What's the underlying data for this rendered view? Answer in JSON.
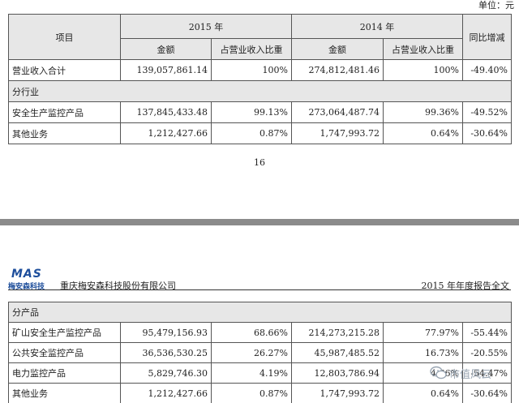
{
  "unit_label": "单位：元",
  "table1": {
    "col_item": "项目",
    "year_2015": "2015 年",
    "year_2014": "2014 年",
    "col_yoy": "同比增减",
    "sub_amount": "金额",
    "sub_ratio": "占营业收入比重",
    "rows": [
      {
        "label": "营业收入合计",
        "a2015": "139,057,861.14",
        "r2015": "100%",
        "a2014": "274,812,481.46",
        "r2014": "100%",
        "yoy": "-49.40%"
      },
      {
        "label": "分行业"
      },
      {
        "label": "安全生产监控产品",
        "a2015": "137,845,433.48",
        "r2015": "99.13%",
        "a2014": "273,064,487.74",
        "r2014": "99.36%",
        "yoy": "-49.52%"
      },
      {
        "label": "其他业务",
        "a2015": "1,212,427.66",
        "r2015": "0.87%",
        "a2014": "1,747,993.72",
        "r2014": "0.64%",
        "yoy": "-30.64%"
      }
    ]
  },
  "page_number": "16",
  "header": {
    "logo_mark": "MAS",
    "logo_text": "梅安森科技",
    "company": "重庆梅安森科技股份有限公司",
    "report_title": "2015 年年度报告全文"
  },
  "table2": {
    "rows": [
      {
        "label": "分产品"
      },
      {
        "label": "矿山安全生产监控产品",
        "a2015": "95,479,156.93",
        "r2015": "68.66%",
        "a2014": "214,273,215.28",
        "r2014": "77.97%",
        "yoy": "-55.44%"
      },
      {
        "label": "公共安全监控产品",
        "a2015": "36,536,530.25",
        "r2015": "26.27%",
        "a2014": "45,987,485.52",
        "r2014": "16.73%",
        "yoy": "-20.55%"
      },
      {
        "label": "电力监控产品",
        "a2015": "5,829,746.30",
        "r2015": "4.19%",
        "a2014": "12,803,786.94",
        "r2014": "4.66%",
        "yoy": "-54.47%"
      },
      {
        "label": "其他业务",
        "a2015": "1,212,427.66",
        "r2015": "0.87%",
        "a2014": "1,747,993.72",
        "r2014": "0.64%",
        "yoy": "-30.64%"
      }
    ]
  },
  "watermark": {
    "text": "市值风云",
    "icon": "wechat-icon"
  }
}
